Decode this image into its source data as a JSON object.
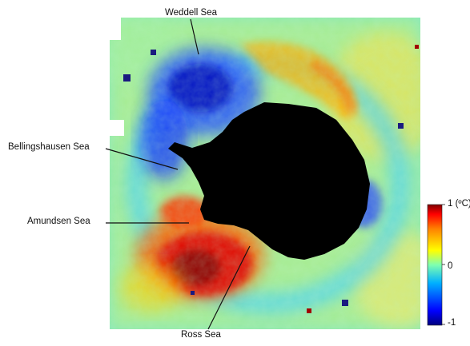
{
  "map": {
    "labels": {
      "weddell": "Weddell Sea",
      "bellingshausen": "Bellingshausen Sea",
      "amundsen": "Amundsen Sea",
      "ross": "Ross Sea"
    }
  },
  "colorbar": {
    "max_label": "1 (ºC)",
    "mid_label": "0",
    "min_label": "-1",
    "colors": [
      "#00007f",
      "#0000ff",
      "#00a0ff",
      "#00ffff",
      "#7fff7f",
      "#ffff00",
      "#ff8000",
      "#ff0000",
      "#7f0000"
    ]
  },
  "palette": {
    "land": "#000000",
    "missing_data": "#1a1a80"
  }
}
